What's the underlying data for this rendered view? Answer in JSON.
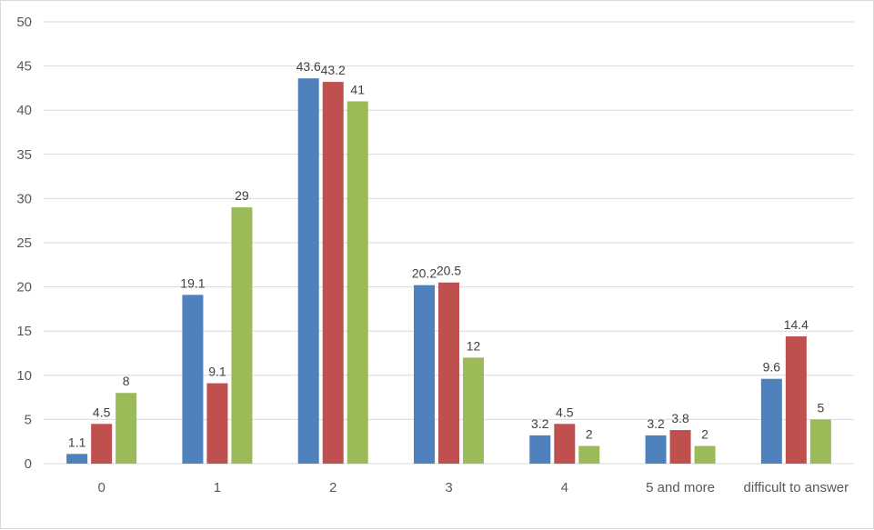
{
  "chart_data": {
    "type": "bar",
    "title": "",
    "xlabel": "",
    "ylabel": "",
    "ylim": [
      0,
      50
    ],
    "yticks": [
      0,
      5,
      10,
      15,
      20,
      25,
      30,
      35,
      40,
      45,
      50
    ],
    "grid": true,
    "legend": "none",
    "categories": [
      "0",
      "1",
      "2",
      "3",
      "4",
      "5 and more",
      "difficult to answer"
    ],
    "series": [
      {
        "name": "Series 1",
        "color": "#4f81bd",
        "values": [
          1.1,
          19.1,
          43.6,
          20.2,
          3.2,
          3.2,
          9.6
        ]
      },
      {
        "name": "Series 2",
        "color": "#c0504d",
        "values": [
          4.5,
          9.1,
          43.2,
          20.5,
          4.5,
          3.8,
          14.4
        ]
      },
      {
        "name": "Series 3",
        "color": "#9bbb59",
        "values": [
          8,
          29,
          41,
          12,
          2,
          2,
          5
        ]
      }
    ]
  }
}
